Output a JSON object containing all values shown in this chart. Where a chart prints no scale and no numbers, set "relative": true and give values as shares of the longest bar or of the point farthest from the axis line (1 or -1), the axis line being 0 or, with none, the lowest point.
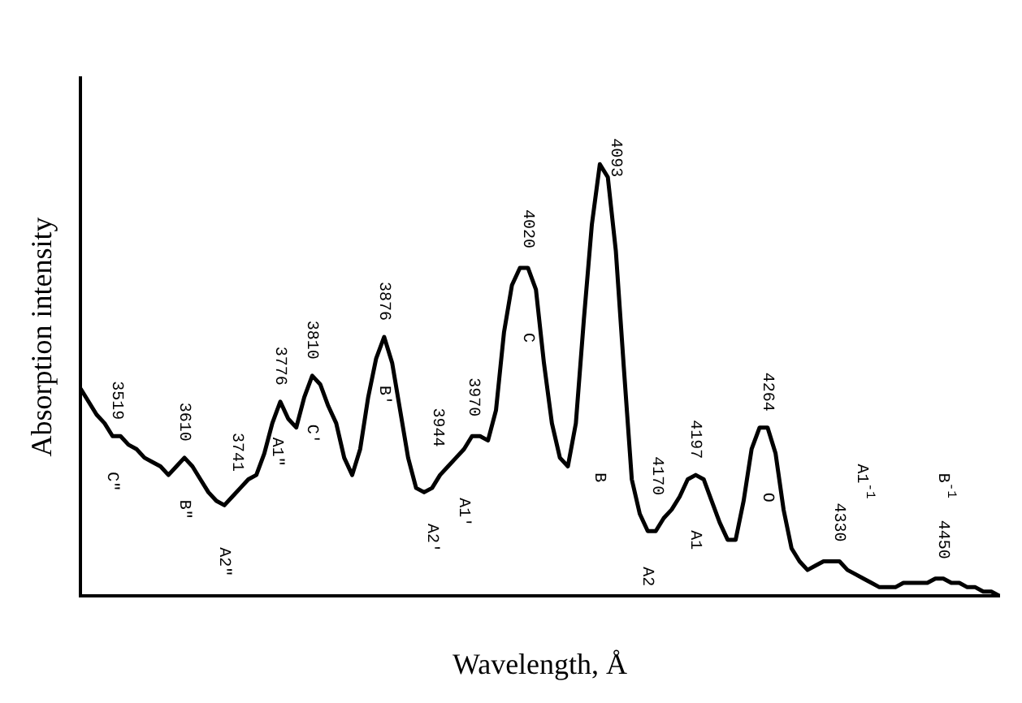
{
  "chart_data": {
    "type": "line",
    "relative": true,
    "xlabel": "Wavelength, Å",
    "ylabel": "Absorption intensity",
    "color": "#000000",
    "categories": [
      null,
      null,
      null,
      null,
      null,
      null,
      null,
      null,
      null,
      null,
      null,
      null,
      null,
      null,
      null,
      null,
      null,
      null,
      null,
      null,
      null,
      null,
      null,
      null,
      null,
      null,
      null,
      null,
      null,
      null,
      null,
      null,
      null,
      null,
      null,
      null,
      null,
      null,
      null,
      null,
      null,
      null,
      null,
      null,
      null,
      null,
      null,
      null,
      null,
      null,
      null,
      null,
      null,
      null,
      null,
      null,
      null,
      null,
      null,
      null,
      null,
      null,
      null,
      null,
      null,
      null,
      null,
      null,
      null,
      null,
      null,
      null,
      null,
      null,
      null,
      null,
      null,
      null,
      null,
      null,
      null,
      null,
      null,
      null,
      null,
      null,
      null,
      null,
      null,
      null,
      null,
      null,
      null,
      null,
      null,
      null,
      null,
      null,
      null,
      null,
      null,
      null,
      null,
      null,
      null,
      null,
      null,
      null,
      null,
      null,
      null,
      null,
      null,
      null,
      null,
      null
    ],
    "values": [
      0.48,
      0.45,
      0.42,
      0.4,
      0.37,
      0.37,
      0.35,
      0.34,
      0.32,
      0.31,
      0.3,
      0.28,
      0.3,
      0.32,
      0.3,
      0.27,
      0.24,
      0.22,
      0.21,
      0.23,
      0.25,
      0.27,
      0.28,
      0.33,
      0.4,
      0.45,
      0.41,
      0.39,
      0.46,
      0.51,
      0.49,
      0.44,
      0.4,
      0.32,
      0.28,
      0.34,
      0.46,
      0.55,
      0.6,
      0.54,
      0.43,
      0.32,
      0.25,
      0.24,
      0.25,
      0.28,
      0.3,
      0.32,
      0.34,
      0.37,
      0.37,
      0.36,
      0.43,
      0.61,
      0.72,
      0.76,
      0.76,
      0.71,
      0.54,
      0.4,
      0.32,
      0.3,
      0.4,
      0.64,
      0.86,
      1.0,
      0.97,
      0.8,
      0.53,
      0.27,
      0.19,
      0.15,
      0.15,
      0.18,
      0.2,
      0.23,
      0.27,
      0.28,
      0.27,
      0.22,
      0.17,
      0.13,
      0.13,
      0.22,
      0.34,
      0.39,
      0.39,
      0.33,
      0.2,
      0.11,
      0.08,
      0.06,
      0.07,
      0.08,
      0.08,
      0.08,
      0.06,
      0.05,
      0.04,
      0.03,
      0.02,
      0.02,
      0.02,
      0.03,
      0.03,
      0.03,
      0.03,
      0.04,
      0.04,
      0.03,
      0.03,
      0.02,
      0.02,
      0.01,
      0.01,
      0.0
    ],
    "annotations": [
      "3519",
      "C\"",
      "3610",
      "B\"",
      "3741",
      "A2\"",
      "3776",
      "A1\"",
      "3810",
      "C'",
      "3876",
      "B'",
      "3944",
      "A2'",
      "3970",
      "A1'",
      "4020",
      "C",
      "4093",
      "B",
      "4170",
      "A2",
      "4197",
      "A1",
      "4264",
      "O",
      "4330",
      "A1$^{-1}$",
      "4450",
      "B$^{-1}$"
    ]
  }
}
